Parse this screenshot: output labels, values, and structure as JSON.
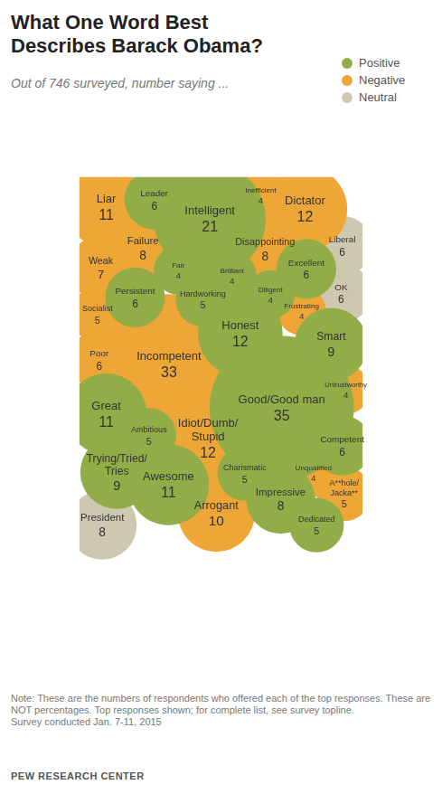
{
  "chart_data": {
    "type": "bubble",
    "title": "What One Word Best Describes Barack Obama?",
    "subtitle": "Out of 746 surveyed, number saying ...",
    "categories": [
      "Liar",
      "Leader",
      "Intelligent",
      "Inefficient",
      "Dictator",
      "Failure",
      "Disappointing",
      "Liberal",
      "Weak",
      "Excellent",
      "Fair",
      "Brilliant",
      "OK",
      "Persistent",
      "Diligent",
      "Hardworking",
      "Frustrating",
      "Honest",
      "Incompetent",
      "Smart",
      "Socialist",
      "Good/Good man",
      "Poor",
      "Great",
      "Idiot/Dumb/Stupid",
      "Ambitious",
      "Competent",
      "Trying/Tried/Tries",
      "Untrustworthy",
      "Awesome",
      "Charismatic",
      "Unqualified",
      "Impressive",
      "Arrogant",
      "A**hole/Jacka**",
      "President",
      "Dedicated"
    ],
    "series": [
      {
        "name": "Positive",
        "color": "#92ad47",
        "values": [
          null,
          6,
          21,
          null,
          null,
          null,
          null,
          null,
          null,
          6,
          4,
          4,
          null,
          6,
          4,
          5,
          null,
          12,
          null,
          9,
          null,
          35,
          null,
          11,
          null,
          5,
          6,
          9,
          null,
          11,
          5,
          null,
          8,
          null,
          null,
          null,
          5
        ]
      },
      {
        "name": "Negative",
        "color": "#eea736",
        "values": [
          11,
          null,
          null,
          4,
          12,
          8,
          8,
          null,
          7,
          null,
          null,
          null,
          null,
          null,
          null,
          null,
          4,
          null,
          33,
          null,
          5,
          null,
          6,
          null,
          12,
          null,
          null,
          null,
          4,
          null,
          null,
          4,
          null,
          10,
          5,
          null,
          null
        ]
      },
      {
        "name": "Neutral",
        "color": "#cfc8b0",
        "values": [
          null,
          null,
          null,
          null,
          null,
          null,
          null,
          6,
          null,
          null,
          null,
          null,
          6,
          null,
          null,
          null,
          null,
          null,
          null,
          null,
          null,
          null,
          null,
          null,
          null,
          null,
          null,
          null,
          null,
          null,
          null,
          null,
          null,
          null,
          null,
          8,
          null
        ]
      }
    ],
    "legend": "top-right",
    "data_labels": true,
    "tick_labels": false,
    "grid": false,
    "annotations": [
      "Note: These are the numbers of respondents who offered each of the top responses. These are NOT percentages. Top responses shown; for complete list, see survey topline.",
      "Survey conducted Jan. 7-11, 2015"
    ],
    "source": "PEW RESEARCH CENTER"
  }
}
